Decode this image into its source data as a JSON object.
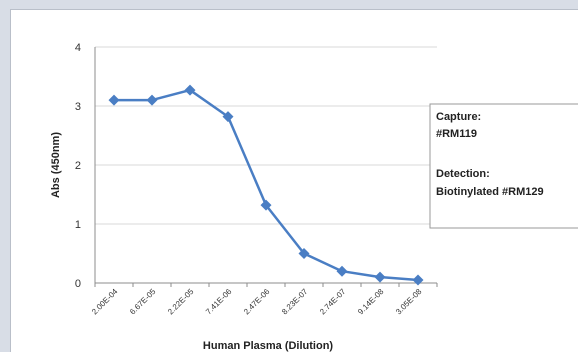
{
  "chart_data": {
    "type": "line",
    "categories": [
      "2.00E-04",
      "6.67E-05",
      "2.22E-05",
      "7.41E-06",
      "2.47E-06",
      "8.23E-07",
      "2.74E-07",
      "9.14E-08",
      "3.05E-08"
    ],
    "series": [
      {
        "values": [
          3.1,
          3.1,
          3.27,
          2.82,
          1.32,
          0.5,
          0.2,
          0.1,
          0.05
        ]
      }
    ],
    "xlabel": "Human Plasma (Dilution)",
    "ylabel": "Abs (450nm)",
    "ylim": [
      0,
      4
    ],
    "yticks": [
      0,
      1,
      2,
      3,
      4
    ],
    "grid": true,
    "legend": {
      "placement": "right",
      "lines": [
        "Capture:",
        "#RM119",
        "",
        "Detection:",
        "Biotinylated #RM129"
      ]
    },
    "colors": {
      "series": "#4a7ec4",
      "grid": "#d9d9d9",
      "axis": "#8c8c8c"
    }
  }
}
